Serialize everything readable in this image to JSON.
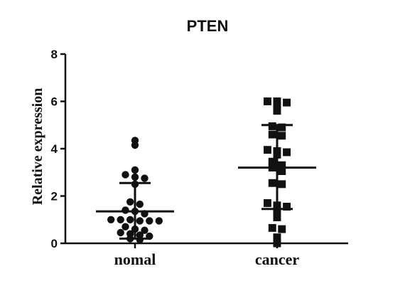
{
  "chart_data": {
    "type": "scatter",
    "title": "PTEN",
    "xlabel": "",
    "ylabel": "Relative expression",
    "categories": [
      "nomal",
      "cancer"
    ],
    "ylim": [
      0,
      8
    ],
    "yticks": [
      0,
      2,
      4,
      6,
      8
    ],
    "grid": false,
    "series": [
      {
        "category": "nomal",
        "marker": "circle",
        "values": [
          4.35,
          4.15,
          3.1,
          2.9,
          2.8,
          2.75,
          2.5,
          1.75,
          1.65,
          1.4,
          1.35,
          1.25,
          1.0,
          1.0,
          1.0,
          0.95,
          0.95,
          0.95,
          0.7,
          0.6,
          0.55,
          0.45,
          0.4,
          0.35,
          0.3,
          0.2,
          0.15
        ],
        "mean": 1.35,
        "sd_upper": 2.55,
        "sd_lower": 0.2
      },
      {
        "category": "cancer",
        "marker": "square",
        "values": [
          6.0,
          6.0,
          5.95,
          5.8,
          5.6,
          4.95,
          4.9,
          4.6,
          4.55,
          3.95,
          3.9,
          3.85,
          3.75,
          3.45,
          3.3,
          3.2,
          3.05,
          2.55,
          2.5,
          1.7,
          1.6,
          1.55,
          1.4,
          1.1,
          0.65,
          0.6,
          0.25,
          0.0
        ],
        "mean": 3.2,
        "sd_upper": 5.0,
        "sd_lower": 1.45
      }
    ]
  }
}
